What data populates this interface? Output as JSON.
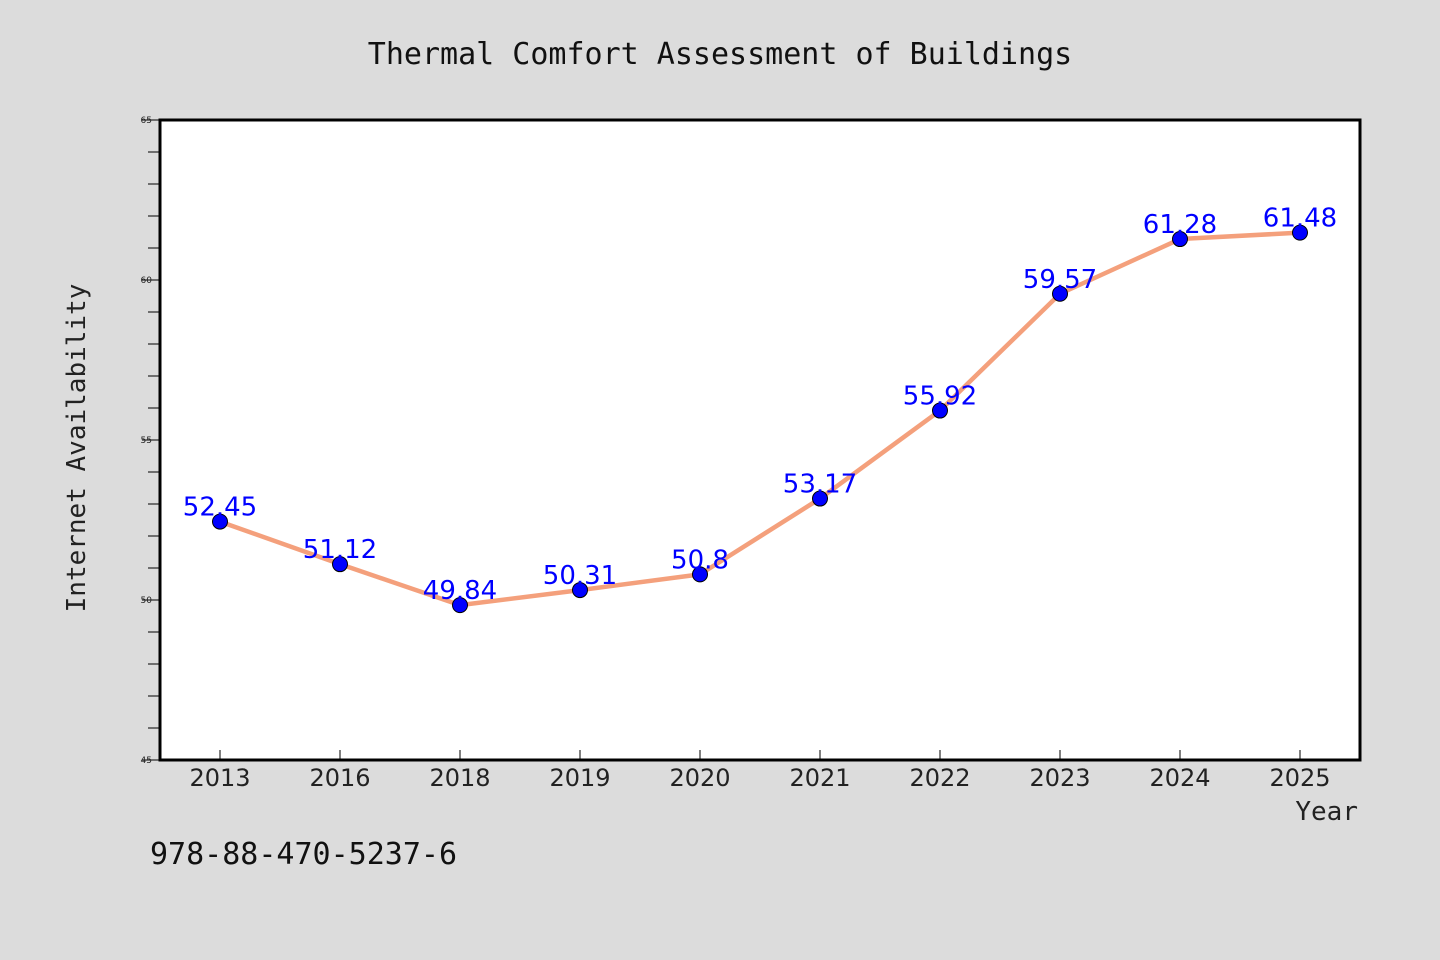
{
  "chart_data": {
    "type": "line",
    "title": "Thermal Comfort Assessment of Buildings",
    "xlabel": "Year",
    "ylabel": "Internet Availability",
    "categories": [
      "2013",
      "2016",
      "2018",
      "2019",
      "2020",
      "2021",
      "2022",
      "2023",
      "2024",
      "2025"
    ],
    "series": [
      {
        "values": [
          52.45,
          51.12,
          49.84,
          50.31,
          50.8,
          53.17,
          55.92,
          59.57,
          61.28,
          61.48
        ],
        "labels": [
          "52.45",
          "51.12",
          "49.84",
          "50.31",
          "50.8",
          "53.17",
          "55.92",
          "59.57",
          "61.28",
          "61.48"
        ]
      }
    ],
    "ylim": [
      45,
      65
    ],
    "yticks": [
      "45",
      "50",
      "55",
      "60",
      "65"
    ],
    "grid": false,
    "colors": {
      "line": "#f4a07c",
      "marker": "#0000ff",
      "data_label": "#0000ff",
      "background": "#dcdcdc",
      "plot_background": "#ffffff"
    }
  },
  "footer": {
    "text": "978-88-470-5237-6"
  }
}
